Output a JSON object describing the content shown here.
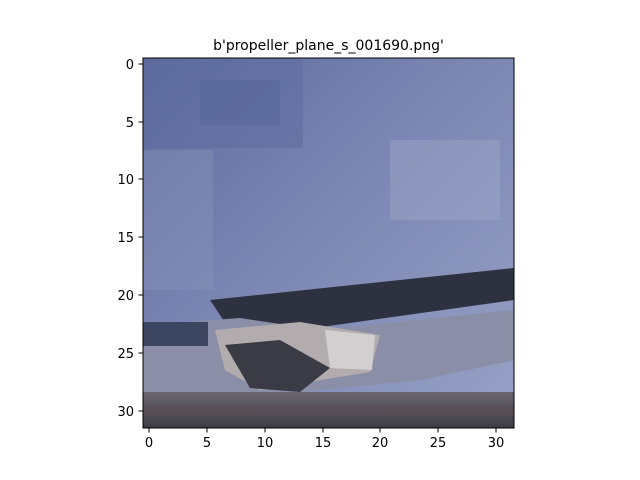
{
  "title": "b'propeller_plane_s_001690.png'",
  "image": {
    "description": "low-resolution pixelated photo of a propeller plane against a blue-gray sky",
    "grid_size": 32,
    "palette": {
      "sky_dark": "#5f6d9e",
      "sky_mid": "#7d88b4",
      "sky_light": "#9ea8c8",
      "wing_dark": "#2f3342",
      "fuselage": "#a7a2a8",
      "ground": "#4b4a52"
    }
  },
  "axes": {
    "x_ticks": [
      "0",
      "5",
      "10",
      "15",
      "20",
      "25",
      "30"
    ],
    "y_ticks": [
      "0",
      "5",
      "10",
      "15",
      "20",
      "25",
      "30"
    ]
  }
}
